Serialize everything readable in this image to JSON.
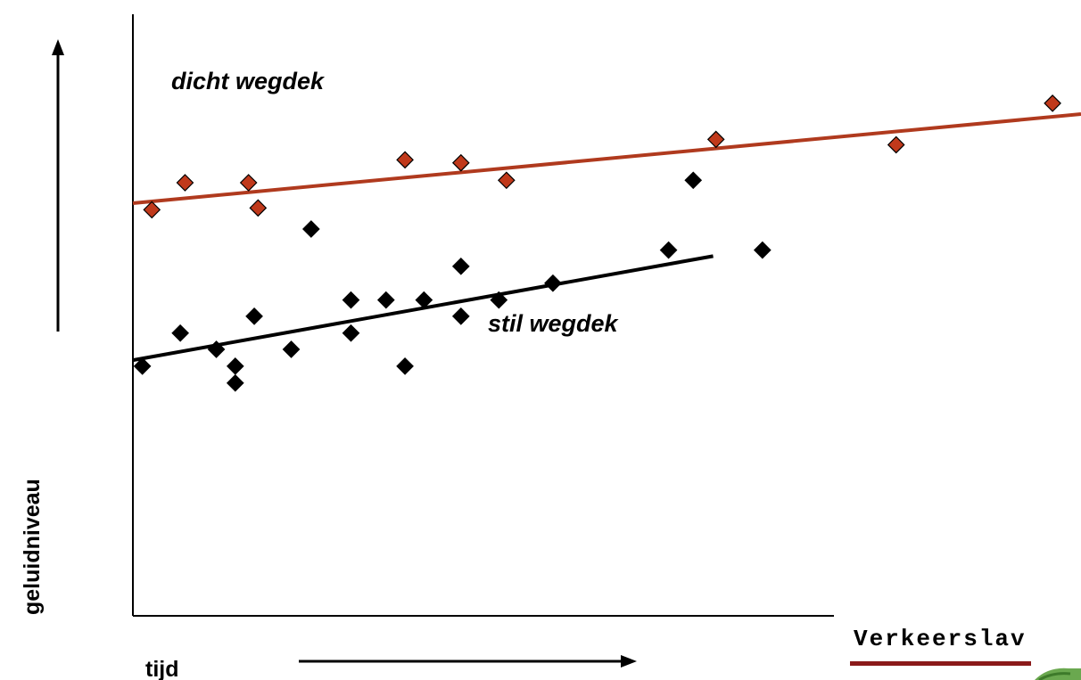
{
  "chart_data": {
    "type": "scatter",
    "xlabel": "tijd",
    "ylabel": "geluidniveau",
    "xlim": [
      0,
      100
    ],
    "ylim": [
      0,
      100
    ],
    "grid": false,
    "series": [
      {
        "name": "dicht wegdek",
        "color": "#c0391b",
        "line_color": "#b03a1e",
        "points": [
          {
            "x": 2,
            "y": 67.5
          },
          {
            "x": 5.5,
            "y": 72
          },
          {
            "x": 12.2,
            "y": 72
          },
          {
            "x": 13.2,
            "y": 67.8
          },
          {
            "x": 28.7,
            "y": 75.8
          },
          {
            "x": 34.6,
            "y": 75.3
          },
          {
            "x": 39.4,
            "y": 72.4
          },
          {
            "x": 61.5,
            "y": 79.2
          },
          {
            "x": 80.5,
            "y": 78.3
          },
          {
            "x": 97,
            "y": 85.2
          }
        ],
        "trend": [
          {
            "x": 0,
            "y": 68.6
          },
          {
            "x": 100,
            "y": 83.4
          }
        ]
      },
      {
        "name": "stil wegdek",
        "color": "#000000",
        "line_color": "#000000",
        "points": [
          {
            "x": 1,
            "y": 41.5
          },
          {
            "x": 5,
            "y": 47
          },
          {
            "x": 8.8,
            "y": 44.3
          },
          {
            "x": 10.8,
            "y": 41.5
          },
          {
            "x": 10.8,
            "y": 38.7
          },
          {
            "x": 12.8,
            "y": 49.8
          },
          {
            "x": 16.7,
            "y": 44.3
          },
          {
            "x": 18.8,
            "y": 64.3
          },
          {
            "x": 23,
            "y": 52.5
          },
          {
            "x": 23,
            "y": 47
          },
          {
            "x": 26.7,
            "y": 52.5
          },
          {
            "x": 28.7,
            "y": 41.5
          },
          {
            "x": 30.7,
            "y": 52.5
          },
          {
            "x": 34.6,
            "y": 58.1
          },
          {
            "x": 34.6,
            "y": 49.8
          },
          {
            "x": 38.6,
            "y": 52.5
          },
          {
            "x": 44.3,
            "y": 55.3
          },
          {
            "x": 56.5,
            "y": 60.8
          },
          {
            "x": 59.1,
            "y": 72.4
          },
          {
            "x": 66.4,
            "y": 60.8
          }
        ],
        "trend": [
          {
            "x": 0,
            "y": 42.5
          },
          {
            "x": 61.2,
            "y": 59.8
          }
        ]
      }
    ],
    "annotations": [
      {
        "text": "dicht wegdek",
        "series": "dicht wegdek"
      },
      {
        "text": "stil wegdek",
        "series": "stil wegdek"
      }
    ]
  },
  "logo": {
    "text": "Verkeerslav"
  }
}
